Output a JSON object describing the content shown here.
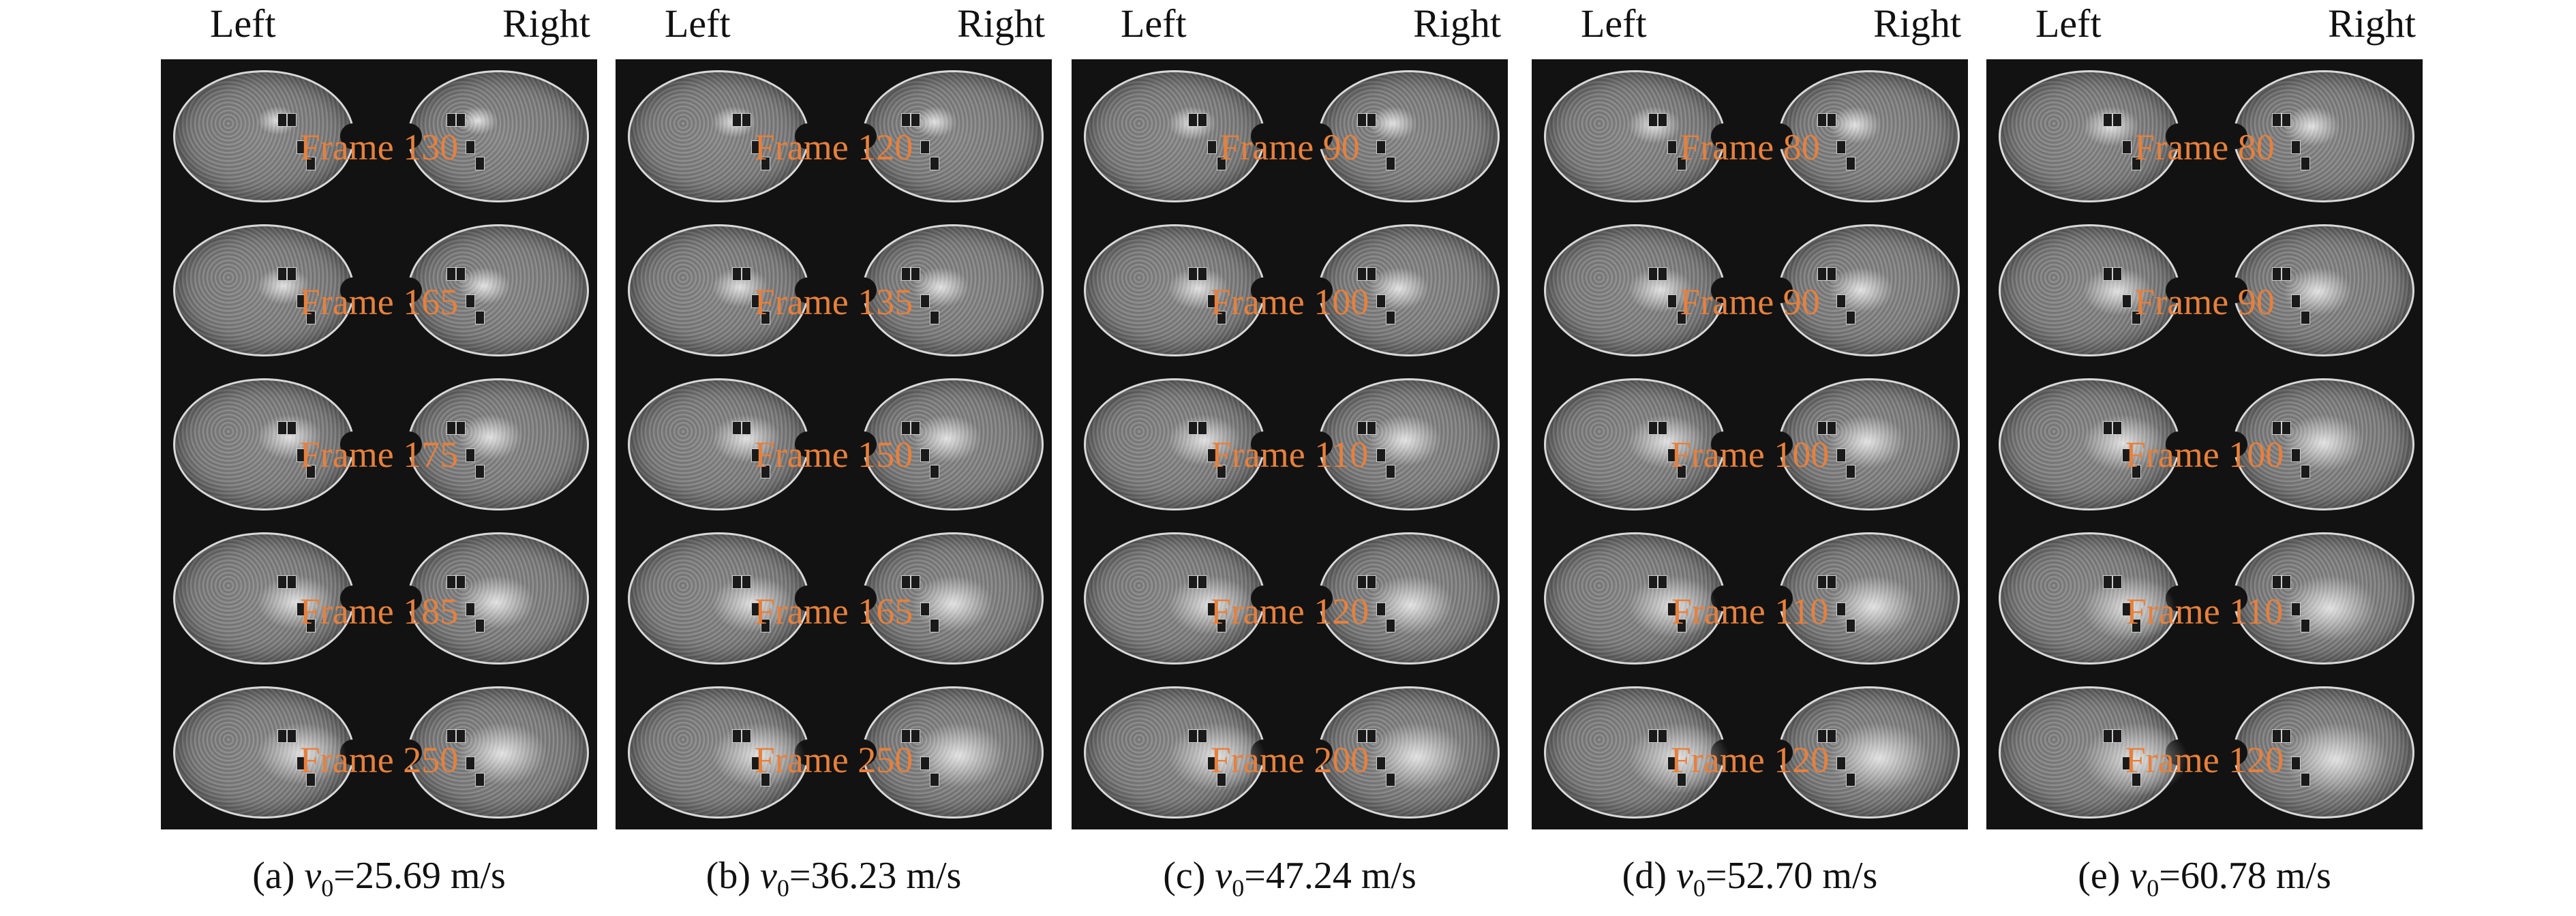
{
  "panels": [
    {
      "left_label": "Left",
      "right_label": "Right",
      "frames": [
        "Frame 130",
        "Frame 165",
        "Frame 175",
        "Frame 185",
        "Frame 250"
      ],
      "caption_prefix": "(a) ",
      "caption_var": "v",
      "caption_sub": "0",
      "caption_value": "=25.69 m/s"
    },
    {
      "left_label": "Left",
      "right_label": "Right",
      "frames": [
        "Frame 120",
        "Frame 135",
        "Frame 150",
        "Frame 165",
        "Frame 250"
      ],
      "caption_prefix": "(b) ",
      "caption_var": "v",
      "caption_sub": "0",
      "caption_value": "=36.23 m/s"
    },
    {
      "left_label": "Left",
      "right_label": "Right",
      "frames": [
        "Frame 90",
        "Frame 100",
        "Frame 110",
        "Frame 120",
        "Frame 200"
      ],
      "caption_prefix": "(c) ",
      "caption_var": "v",
      "caption_sub": "0",
      "caption_value": "=47.24 m/s"
    },
    {
      "left_label": "Left",
      "right_label": "Right",
      "frames": [
        "Frame 80",
        "Frame 90",
        "Frame 100",
        "Frame 110",
        "Frame 120"
      ],
      "caption_prefix": "(d) ",
      "caption_var": "v",
      "caption_sub": "0",
      "caption_value": "=52.70 m/s"
    },
    {
      "left_label": "Left",
      "right_label": "Right",
      "frames": [
        "Frame 80",
        "Frame 90",
        "Frame 100",
        "Frame 110",
        "Frame 120"
      ],
      "caption_prefix": "(e) ",
      "caption_var": "v",
      "caption_sub": "0",
      "caption_value": "=60.78 m/s"
    }
  ],
  "colors": {
    "frame_label": "#e7803c",
    "photo_background": "#121212",
    "text": "#111111"
  }
}
